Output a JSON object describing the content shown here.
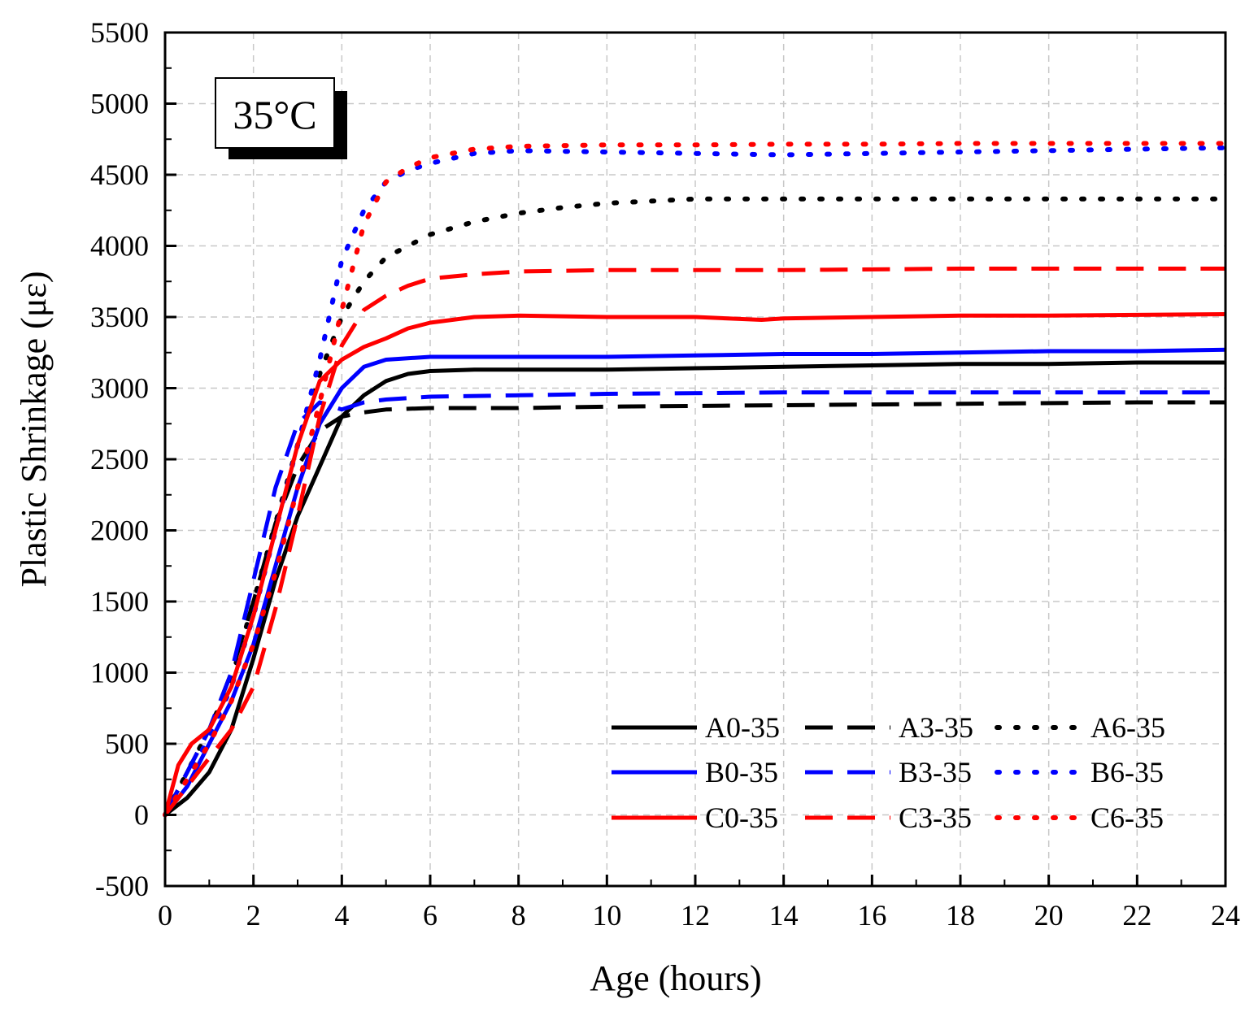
{
  "chart_data": {
    "type": "line",
    "annotation": "35°C",
    "xlabel": "Age (hours)",
    "ylabel": "Plastic Shrinkage (με)",
    "xlim": [
      0,
      24
    ],
    "ylim": [
      -500,
      5500
    ],
    "xticks": [
      "0",
      "2",
      "4",
      "6",
      "8",
      "10",
      "12",
      "14",
      "16",
      "18",
      "20",
      "22",
      "24"
    ],
    "yticks": [
      "-500",
      "0",
      "500",
      "1000",
      "1500",
      "2000",
      "2500",
      "3000",
      "3500",
      "4000",
      "4500",
      "5000",
      "5500"
    ],
    "grid": true,
    "legend_position": "bottom-right",
    "series": [
      {
        "name": "A0-35",
        "color": "#000000",
        "dash": "solid",
        "x": [
          0,
          0.5,
          1,
          1.5,
          2,
          2.5,
          3,
          3.5,
          4,
          4.5,
          5,
          5.5,
          6,
          7,
          8,
          10,
          12,
          14,
          16,
          18,
          20,
          22,
          24
        ],
        "y": [
          0,
          120,
          300,
          600,
          1100,
          1650,
          2100,
          2450,
          2800,
          2950,
          3050,
          3100,
          3120,
          3130,
          3130,
          3130,
          3140,
          3150,
          3160,
          3170,
          3170,
          3180,
          3180
        ]
      },
      {
        "name": "A3-35",
        "color": "#000000",
        "dash": "dash",
        "x": [
          0,
          0.5,
          1,
          1.5,
          2,
          2.5,
          3,
          3.5,
          4,
          4.5,
          5,
          6,
          8,
          10,
          14,
          18,
          22,
          24
        ],
        "y": [
          0,
          300,
          600,
          1000,
          1500,
          2050,
          2450,
          2700,
          2800,
          2830,
          2850,
          2860,
          2860,
          2870,
          2880,
          2890,
          2900,
          2900
        ]
      },
      {
        "name": "A6-35",
        "color": "#000000",
        "dash": "dot",
        "x": [
          0,
          0.5,
          1,
          1.5,
          2,
          2.5,
          3,
          3.5,
          4,
          4.5,
          5,
          6,
          7,
          8,
          9,
          10,
          12,
          16,
          20,
          24
        ],
        "y": [
          0,
          300,
          600,
          950,
          1500,
          2050,
          2600,
          3100,
          3500,
          3750,
          3920,
          4080,
          4170,
          4230,
          4270,
          4300,
          4330,
          4330,
          4330,
          4330
        ]
      },
      {
        "name": "B0-35",
        "color": "#0000ff",
        "dash": "solid",
        "x": [
          0,
          0.5,
          1,
          1.5,
          2,
          2.5,
          3,
          3.5,
          4,
          4.5,
          5,
          6,
          8,
          10,
          12,
          14,
          16,
          18,
          20,
          22,
          24
        ],
        "y": [
          0,
          200,
          500,
          800,
          1200,
          1750,
          2300,
          2750,
          3000,
          3150,
          3200,
          3220,
          3220,
          3220,
          3230,
          3240,
          3240,
          3250,
          3260,
          3260,
          3270
        ]
      },
      {
        "name": "B3-35",
        "color": "#0000ff",
        "dash": "dash",
        "x": [
          0,
          0.5,
          1,
          1.5,
          2,
          2.5,
          3,
          3.5,
          4,
          4.5,
          5,
          6,
          8,
          10,
          14,
          18,
          22,
          24
        ],
        "y": [
          0,
          300,
          600,
          1000,
          1650,
          2300,
          2750,
          2900,
          2850,
          2900,
          2920,
          2940,
          2950,
          2960,
          2970,
          2970,
          2970,
          2970
        ]
      },
      {
        "name": "B6-35",
        "color": "#0000ff",
        "dash": "dot",
        "x": [
          0,
          0.5,
          1,
          1.5,
          2,
          2.5,
          3,
          3.5,
          4,
          4.5,
          5,
          5.5,
          6,
          7,
          8,
          10,
          12,
          14,
          16,
          18,
          20,
          22,
          24
        ],
        "y": [
          0,
          250,
          550,
          900,
          1400,
          2000,
          2600,
          3200,
          3900,
          4250,
          4450,
          4530,
          4580,
          4650,
          4670,
          4660,
          4650,
          4640,
          4650,
          4660,
          4670,
          4680,
          4690
        ]
      },
      {
        "name": "C0-35",
        "color": "#ff0000",
        "dash": "solid",
        "x": [
          0,
          0.3,
          0.6,
          1,
          1.5,
          2,
          2.5,
          3,
          3.5,
          4,
          4.5,
          5,
          5.5,
          6,
          7,
          8,
          10,
          12,
          13.5,
          14,
          16,
          18,
          20,
          22,
          24
        ],
        "y": [
          0,
          350,
          500,
          600,
          900,
          1400,
          2000,
          2600,
          3050,
          3200,
          3290,
          3350,
          3420,
          3460,
          3500,
          3510,
          3500,
          3500,
          3480,
          3490,
          3500,
          3510,
          3510,
          3515,
          3520
        ]
      },
      {
        "name": "C3-35",
        "color": "#ff0000",
        "dash": "dash",
        "x": [
          0,
          0.5,
          1,
          1.5,
          2,
          2.5,
          3,
          3.5,
          4,
          4.5,
          5,
          5.5,
          6,
          7,
          8,
          10,
          14,
          18,
          22,
          24
        ],
        "y": [
          0,
          200,
          400,
          600,
          900,
          1450,
          2100,
          2800,
          3300,
          3550,
          3650,
          3720,
          3770,
          3800,
          3820,
          3830,
          3830,
          3840,
          3840,
          3840
        ]
      },
      {
        "name": "C6-35",
        "color": "#ff0000",
        "dash": "dot",
        "x": [
          0,
          0.5,
          1,
          1.5,
          2,
          2.5,
          3,
          3.5,
          4,
          4.5,
          5,
          5.5,
          6,
          7,
          8,
          10,
          12,
          14,
          16,
          18,
          20,
          22,
          24
        ],
        "y": [
          0,
          250,
          500,
          800,
          1200,
          1700,
          2300,
          2900,
          3550,
          4150,
          4450,
          4550,
          4620,
          4680,
          4700,
          4710,
          4710,
          4715,
          4715,
          4720,
          4720,
          4720,
          4720
        ]
      }
    ]
  }
}
